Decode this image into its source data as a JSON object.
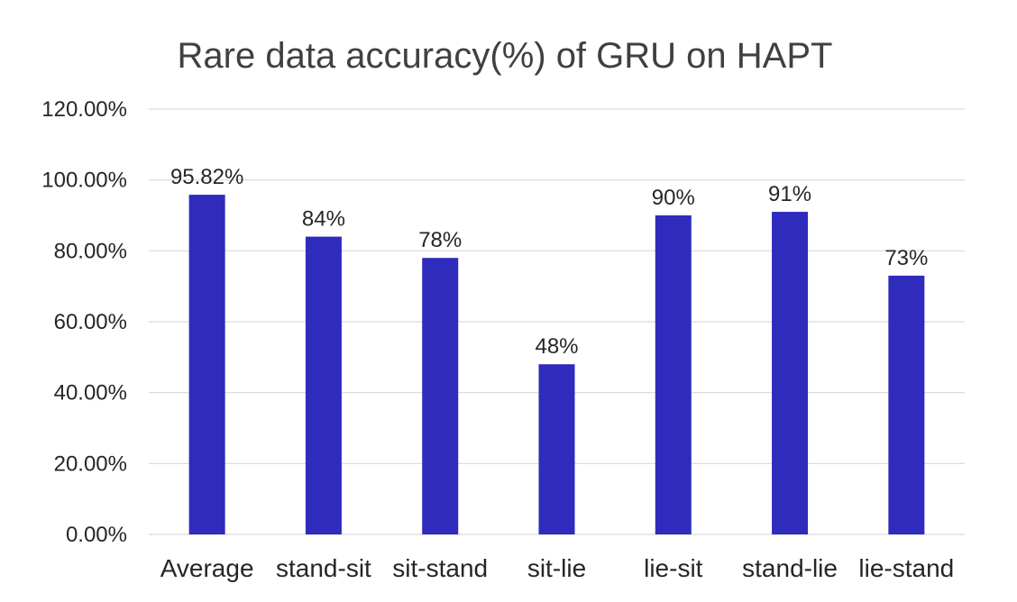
{
  "chart_data": {
    "type": "bar",
    "title": "Rare data accuracy(%)  of GRU on HAPT",
    "xlabel": "",
    "ylabel": "",
    "categories": [
      "Average",
      "stand-sit",
      "sit-stand",
      "sit-lie",
      "lie-sit",
      "stand-lie",
      "lie-stand"
    ],
    "values": [
      95.82,
      84,
      78,
      48,
      90,
      91,
      73
    ],
    "data_labels": [
      "95.82%",
      "84%",
      "78%",
      "48%",
      "90%",
      "91%",
      "73%"
    ],
    "ylim": [
      0,
      120
    ],
    "yticks": [
      0,
      20,
      40,
      60,
      80,
      100,
      120
    ],
    "ytick_labels": [
      "0.00%",
      "20.00%",
      "40.00%",
      "60.00%",
      "80.00%",
      "100.00%",
      "120.00%"
    ],
    "grid": true,
    "legend": "none",
    "bar_color": "#2e2bbd"
  }
}
